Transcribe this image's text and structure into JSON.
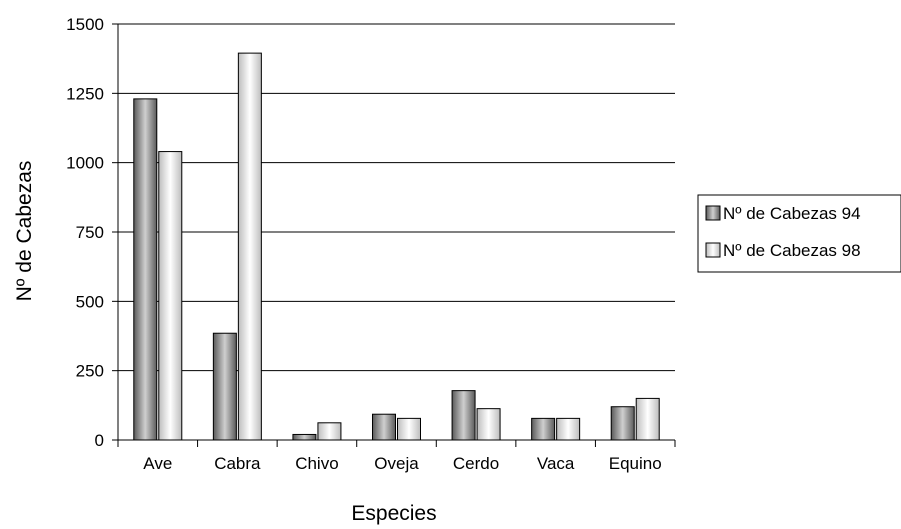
{
  "chart_data": {
    "type": "bar",
    "title": "",
    "xlabel": "Especies",
    "ylabel": "Nº de Cabezas",
    "categories": [
      "Ave",
      "Cabra",
      "Chivo",
      "Oveja",
      "Cerdo",
      "Vaca",
      "Equino"
    ],
    "series": [
      {
        "name": "Nº de Cabezas 94",
        "values": [
          1230,
          385,
          20,
          93,
          178,
          78,
          120
        ]
      },
      {
        "name": "Nº de Cabezas 98",
        "values": [
          1040,
          1395,
          62,
          78,
          113,
          78,
          150
        ]
      }
    ],
    "ylim": [
      0,
      1500
    ],
    "yticks": [
      0,
      250,
      500,
      750,
      1000,
      1250,
      1500
    ],
    "grid": true,
    "legend_position": "right",
    "series_colors": [
      "#6f6f6f",
      "#e8e8e8"
    ]
  }
}
